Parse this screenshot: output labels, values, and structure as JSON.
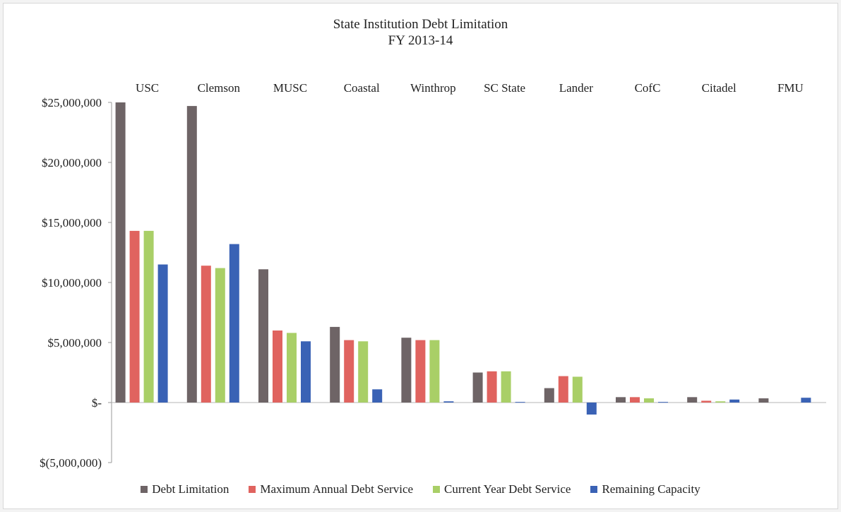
{
  "chart_data": {
    "type": "bar",
    "title": "State Institution Debt Limitation",
    "subtitle": "FY 2013-14",
    "xlabel": "",
    "ylabel": "",
    "categories": [
      "USC",
      "Clemson",
      "MUSC",
      "Coastal",
      "Winthrop",
      "SC State",
      "Lander",
      "CofC",
      "Citadel",
      "FMU"
    ],
    "series": [
      {
        "name": "Debt Limitation",
        "color": "#6e6466",
        "values": [
          25000000,
          24700000,
          11100000,
          6300000,
          5400000,
          2500000,
          1200000,
          450000,
          450000,
          350000
        ]
      },
      {
        "name": "Maximum Annual Debt Service",
        "color": "#e0635f",
        "values": [
          14300000,
          11400000,
          6000000,
          5200000,
          5200000,
          2600000,
          2200000,
          450000,
          150000,
          0
        ]
      },
      {
        "name": "Current Year Debt Service",
        "color": "#a9cf67",
        "values": [
          14300000,
          11200000,
          5800000,
          5100000,
          5200000,
          2600000,
          2150000,
          350000,
          100000,
          0
        ]
      },
      {
        "name": "Remaining Capacity",
        "color": "#3a62b5",
        "values": [
          11500000,
          13200000,
          5100000,
          1100000,
          100000,
          50000,
          -1000000,
          50000,
          250000,
          400000
        ]
      }
    ],
    "ylim": [
      -5000000,
      25000000
    ],
    "y_ticks": [
      {
        "value": 25000000,
        "label": "$25,000,000"
      },
      {
        "value": 20000000,
        "label": "$20,000,000"
      },
      {
        "value": 15000000,
        "label": "$15,000,000"
      },
      {
        "value": 10000000,
        "label": "$10,000,000"
      },
      {
        "value": 5000000,
        "label": "$5,000,000"
      },
      {
        "value": 0,
        "label": "$-"
      },
      {
        "value": -5000000,
        "label": "$(5,000,000)"
      }
    ],
    "category_labels_position": "top",
    "grid": false,
    "legend_position": "bottom"
  }
}
